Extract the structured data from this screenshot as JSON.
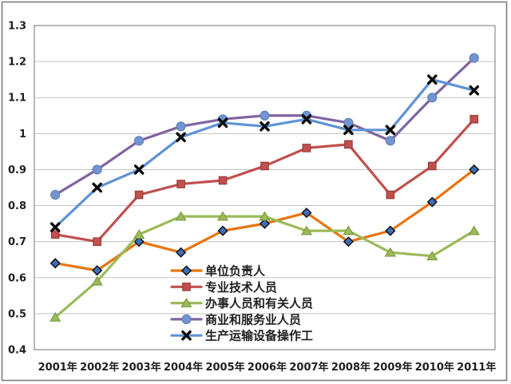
{
  "chart_data": {
    "type": "line",
    "title": "",
    "xlabel": "",
    "ylabel": "",
    "categories": [
      "2001年",
      "2002年",
      "2003年",
      "2004年",
      "2005年",
      "2006年",
      "2007年",
      "2008年",
      "2009年",
      "2010年",
      "2011年"
    ],
    "y_axis": {
      "min": 0.4,
      "max": 1.3,
      "tick_step": 0.1,
      "tick_values": [
        0.4,
        0.5,
        0.6,
        0.7,
        0.8,
        0.9,
        1.0,
        1.1,
        1.2,
        1.3
      ],
      "tick_labels": [
        "0.4",
        "0.5",
        "0.6",
        "0.7",
        "0.8",
        "0.9",
        "1",
        "1.1",
        "1.2",
        "1.3"
      ]
    },
    "grid": true,
    "legend_position": "inside-bottom-center",
    "series": [
      {
        "name": "单位负责人",
        "marker": "diamond",
        "line_color": "#E6750F",
        "marker_fill": "#3D6EB5",
        "marker_edge": "#0D0D0D",
        "values": [
          0.64,
          0.62,
          0.7,
          0.67,
          0.73,
          0.75,
          0.78,
          0.7,
          0.73,
          0.81,
          0.9
        ]
      },
      {
        "name": "专业技术人员",
        "marker": "square",
        "line_color": "#C0504D",
        "marker_fill": "#C0504D",
        "marker_edge": "#943634",
        "values": [
          0.72,
          0.7,
          0.83,
          0.86,
          0.87,
          0.91,
          0.96,
          0.97,
          0.83,
          0.91,
          1.04
        ]
      },
      {
        "name": "办事人员和有关人员",
        "marker": "triangle",
        "line_color": "#9BBB59",
        "marker_fill": "#9BBB59",
        "marker_edge": "#77933C",
        "values": [
          0.49,
          0.59,
          0.72,
          0.77,
          0.77,
          0.77,
          0.73,
          0.73,
          0.67,
          0.66,
          0.73
        ]
      },
      {
        "name": "商业和服务业人员",
        "marker": "circle",
        "line_color": "#8064A2",
        "marker_fill": "#7195D2",
        "marker_edge": "#5F7DAD",
        "values": [
          0.83,
          0.9,
          0.98,
          1.02,
          1.04,
          1.05,
          1.05,
          1.03,
          0.98,
          1.1,
          1.21
        ]
      },
      {
        "name": "生产运输设备操作工",
        "marker": "x",
        "line_color": "#5D93D6",
        "marker_fill": "#0A0A0A",
        "marker_edge": "#0A0A0A",
        "values": [
          0.74,
          0.85,
          0.9,
          0.99,
          1.03,
          1.02,
          1.04,
          1.01,
          1.01,
          1.15,
          1.12
        ]
      }
    ],
    "colors": {
      "background": "#FFFFFF",
      "outer_border": "#7F7F7F",
      "plot_border": "#8C8C8C",
      "gridline": "#C3C3C3",
      "axis_text": "#1F1F1F",
      "legend_text": "#1F1F1F"
    }
  }
}
